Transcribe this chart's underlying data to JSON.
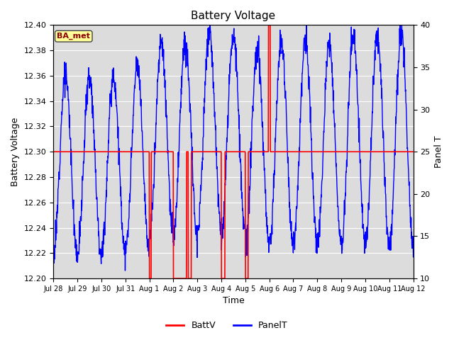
{
  "title": "Battery Voltage",
  "ylabel_left": "Battery Voltage",
  "ylabel_right": "Panel T",
  "xlabel": "Time",
  "ylim_left": [
    12.2,
    12.4
  ],
  "ylim_right": [
    10,
    40
  ],
  "bg_color": "#dcdcdc",
  "fig_color": "#ffffff",
  "grid_color": "#ffffff",
  "xtick_labels": [
    "Jul 28",
    "Jul 29",
    "Jul 30",
    "Jul 31",
    "Aug 1",
    "Aug 2",
    "Aug 3",
    "Aug 4",
    "Aug 5",
    "Aug 6",
    "Aug 7",
    "Aug 8",
    "Aug 9",
    "Aug 10",
    "Aug 11",
    "Aug 12"
  ],
  "batt_color": "#ff0000",
  "panel_color": "#0000ff",
  "ba_met_color": "#8b0000",
  "ba_met_bg": "#ffff99",
  "yticks_left": [
    12.2,
    12.22,
    12.24,
    12.26,
    12.28,
    12.3,
    12.32,
    12.34,
    12.36,
    12.38,
    12.4
  ],
  "yticks_right": [
    10,
    15,
    20,
    25,
    30,
    35,
    40
  ]
}
